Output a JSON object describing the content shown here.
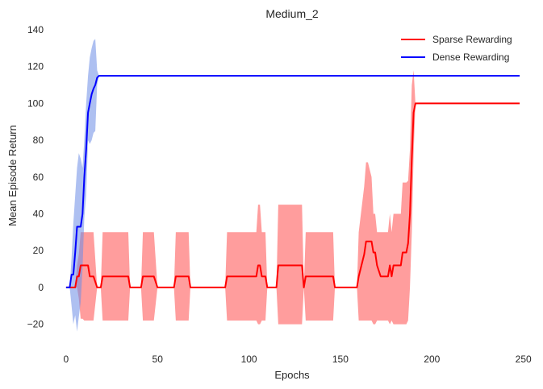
{
  "chart_data": {
    "type": "line",
    "title": "Medium_2",
    "xlabel": "Epochs",
    "ylabel": "Mean Episode Return",
    "xlim": [
      -7,
      255
    ],
    "ylim": [
      -32,
      140
    ],
    "xticks": [
      0,
      50,
      100,
      150,
      200,
      250
    ],
    "yticks": [
      -20,
      0,
      20,
      40,
      60,
      80,
      100,
      120,
      140
    ],
    "grid": false,
    "legend_position": "top-right",
    "series": [
      {
        "name": "Sparse Rewarding",
        "color": "#ff0000",
        "band_color": "#ff4d4d",
        "x": [
          0,
          2,
          4,
          5,
          6,
          7,
          8,
          9,
          10,
          11,
          12,
          13,
          14,
          15,
          17,
          19,
          20,
          34,
          35,
          41,
          42,
          48,
          50,
          51,
          59,
          60,
          67,
          68,
          87,
          88,
          104,
          105,
          106,
          107,
          108,
          109,
          110,
          115,
          116,
          122,
          123,
          129,
          130,
          131,
          132,
          146,
          147,
          159,
          160,
          163,
          164,
          165,
          167,
          168,
          169,
          170,
          172,
          173,
          176,
          177,
          178,
          179,
          180,
          183,
          184,
          185,
          186,
          187,
          188,
          189,
          190,
          191,
          248
        ],
        "mean": [
          0,
          0,
          0,
          0,
          6,
          6,
          12,
          12,
          12,
          12,
          12,
          6,
          6,
          6,
          0,
          0,
          6,
          6,
          0,
          0,
          6,
          6,
          0,
          0,
          0,
          6,
          6,
          0,
          0,
          6,
          6,
          12,
          12,
          6,
          6,
          6,
          0,
          0,
          12,
          12,
          12,
          12,
          0,
          6,
          6,
          6,
          0,
          0,
          6,
          18,
          25,
          25,
          25,
          19,
          19,
          12,
          6,
          6,
          6,
          12,
          6,
          12,
          12,
          12,
          19,
          19,
          19,
          24,
          40,
          70,
          95,
          100,
          100
        ],
        "upper": [
          0,
          0,
          0,
          0,
          12,
          18,
          30,
          30,
          30,
          30,
          30,
          30,
          30,
          30,
          0,
          0,
          30,
          30,
          0,
          0,
          30,
          30,
          0,
          0,
          0,
          30,
          30,
          0,
          0,
          30,
          30,
          45,
          45,
          30,
          30,
          30,
          0,
          0,
          45,
          45,
          45,
          45,
          0,
          30,
          30,
          30,
          0,
          0,
          30,
          55,
          68,
          68,
          60,
          40,
          40,
          30,
          30,
          30,
          30,
          40,
          30,
          40,
          40,
          40,
          57,
          57,
          57,
          58,
          75,
          110,
          118,
          100,
          100
        ],
        "lower": [
          0,
          0,
          0,
          0,
          0,
          -6,
          -17,
          -17,
          -18,
          -18,
          -18,
          -18,
          -18,
          -18,
          0,
          0,
          -18,
          -18,
          0,
          0,
          -18,
          -18,
          0,
          0,
          0,
          -18,
          -18,
          0,
          0,
          -18,
          -18,
          -20,
          -20,
          -18,
          -18,
          -18,
          0,
          0,
          -20,
          -20,
          -20,
          -20,
          0,
          -18,
          -18,
          -18,
          0,
          0,
          -18,
          -18,
          -18,
          -18,
          -18,
          -20,
          -20,
          -18,
          -18,
          -18,
          -18,
          -20,
          -18,
          -20,
          -20,
          -20,
          -20,
          -20,
          -20,
          -18,
          0,
          30,
          72,
          100,
          100
        ]
      },
      {
        "name": "Dense Rewarding",
        "color": "#0000ff",
        "band_color": "#6b8ce6",
        "x": [
          0,
          2,
          3,
          4,
          5,
          6,
          7,
          8,
          9,
          10,
          11,
          12,
          13,
          14,
          15,
          16,
          17,
          18,
          19,
          248
        ],
        "mean": [
          0,
          0,
          7,
          7,
          19,
          33,
          33,
          33,
          40,
          60,
          75,
          95,
          100,
          105,
          108,
          110,
          114,
          115,
          115,
          115
        ],
        "upper": [
          0,
          0,
          16,
          35,
          50,
          65,
          73,
          70,
          65,
          80,
          100,
          115,
          125,
          130,
          134,
          135,
          118,
          115,
          115,
          115
        ],
        "lower": [
          0,
          0,
          -10,
          -20,
          -15,
          -24,
          -16,
          -8,
          10,
          38,
          50,
          80,
          78,
          80,
          84,
          85,
          110,
          115,
          115,
          115
        ]
      }
    ]
  }
}
